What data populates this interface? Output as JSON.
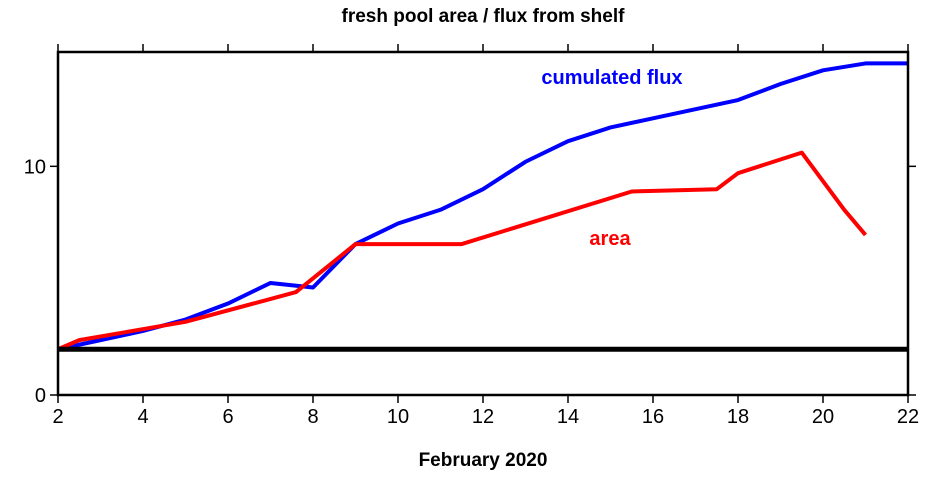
{
  "chart_data": {
    "type": "line",
    "title": "fresh pool area / flux from shelf",
    "x_label": "February 2020",
    "series": [
      {
        "name": "cumulated flux",
        "color": "#0000ff",
        "x": [
          2,
          3,
          4,
          5,
          6,
          7,
          8,
          9,
          10,
          11,
          12,
          13,
          14,
          15,
          16,
          17,
          18,
          19,
          20,
          21,
          22
        ],
        "values": [
          2.0,
          2.4,
          2.8,
          3.3,
          4.0,
          4.9,
          4.7,
          6.6,
          7.5,
          8.1,
          9.0,
          10.2,
          11.1,
          11.7,
          12.1,
          12.5,
          12.9,
          13.6,
          14.2,
          14.5,
          14.5
        ]
      },
      {
        "name": "area",
        "color": "#ff0000",
        "x": [
          2,
          2.5,
          5,
          7.6,
          9,
          11.5,
          15.5,
          17.5,
          18,
          19.5,
          20.5,
          21
        ],
        "values": [
          2.0,
          2.4,
          3.2,
          4.5,
          6.6,
          6.6,
          8.9,
          9.0,
          9.7,
          10.6,
          8.1,
          7.0
        ]
      }
    ],
    "hline": 2,
    "xlim": [
      2,
      22
    ],
    "xticks": [
      2,
      4,
      6,
      8,
      10,
      12,
      14,
      16,
      18,
      20,
      22
    ],
    "ylim": [
      0,
      15
    ],
    "yticks": [
      0,
      10
    ]
  }
}
